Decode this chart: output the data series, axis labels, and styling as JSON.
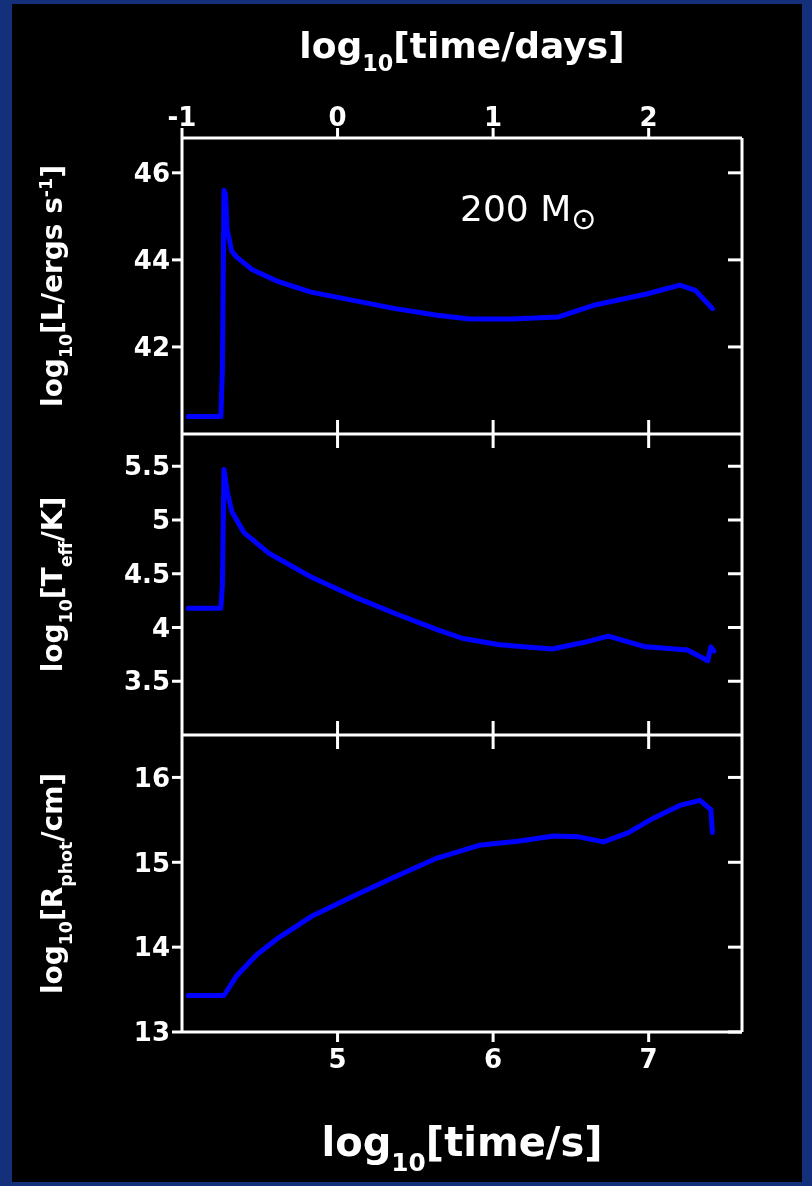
{
  "chart_data": [
    {
      "type": "line",
      "ylabel": "log$_{10}$[L/ergs s$^{-1}$]",
      "x2label": "log$_{10}$[time/days]",
      "annotations": [
        "200 M$_{⊙}$"
      ],
      "marker": "none",
      "tick_labels": "y",
      "x": [
        4.04,
        4.25,
        4.26,
        4.27,
        4.28,
        4.29,
        4.32,
        4.35,
        4.45,
        4.62,
        4.83,
        5.1,
        5.37,
        5.64,
        5.85,
        6.12,
        6.42,
        6.66,
        6.98,
        7.2,
        7.3,
        7.41
      ],
      "series": [
        {
          "color": "#0000ff",
          "values": [
            40.4,
            40.4,
            41.5,
            45.6,
            45.5,
            44.7,
            44.2,
            44.07,
            43.78,
            43.5,
            43.26,
            43.07,
            42.88,
            42.73,
            42.64,
            42.64,
            42.69,
            42.97,
            43.21,
            43.42,
            43.3,
            42.88
          ]
        }
      ],
      "xlim": [
        4.0,
        7.6
      ],
      "xticks": [
        5,
        6,
        7
      ],
      "x2lim": [
        -1,
        2.6
      ],
      "x2ticks": [
        -1,
        0,
        1,
        2
      ],
      "ylim": [
        40,
        46.8
      ],
      "yticks": [
        42,
        44,
        46
      ]
    },
    {
      "type": "line",
      "ylabel": "log$_{10}$[T$_{eff}$/K]",
      "marker": "none",
      "tick_labels": "y",
      "x": [
        4.04,
        4.25,
        4.26,
        4.27,
        4.29,
        4.32,
        4.4,
        4.56,
        4.83,
        5.1,
        5.37,
        5.64,
        5.8,
        6.04,
        6.38,
        6.58,
        6.74,
        6.98,
        7.25,
        7.38,
        7.4,
        7.42
      ],
      "series": [
        {
          "color": "#0000ff",
          "values": [
            4.18,
            4.18,
            4.4,
            5.47,
            5.27,
            5.08,
            4.88,
            4.69,
            4.47,
            4.29,
            4.13,
            3.98,
            3.9,
            3.84,
            3.8,
            3.86,
            3.92,
            3.82,
            3.79,
            3.69,
            3.82,
            3.78
          ]
        }
      ],
      "xlim": [
        4.0,
        7.6
      ],
      "xticks": [
        5,
        6,
        7
      ],
      "ylim": [
        3.0,
        5.8
      ],
      "yticks": [
        3.5,
        4,
        4.5,
        5,
        5.5
      ]
    },
    {
      "type": "line",
      "ylabel": "log$_{10}$[R$_{phot}$/cm]",
      "xlabel": "log$_{10}$[time/s]",
      "marker": "none",
      "x": [
        4.04,
        4.27,
        4.35,
        4.48,
        4.62,
        4.83,
        5.1,
        5.37,
        5.64,
        5.91,
        6.17,
        6.39,
        6.55,
        6.71,
        6.87,
        7.03,
        7.2,
        7.33,
        7.4,
        7.41
      ],
      "series": [
        {
          "color": "#0000ff",
          "values": [
            13.43,
            13.43,
            13.66,
            13.91,
            14.11,
            14.36,
            14.6,
            14.83,
            15.05,
            15.2,
            15.25,
            15.31,
            15.3,
            15.24,
            15.35,
            15.52,
            15.67,
            15.73,
            15.62,
            15.35
          ]
        }
      ],
      "xlim": [
        4.0,
        7.6
      ],
      "xticks": [
        5,
        6,
        7
      ],
      "ylim": [
        13,
        16.5
      ],
      "yticks": [
        13,
        14,
        15,
        16
      ]
    }
  ]
}
